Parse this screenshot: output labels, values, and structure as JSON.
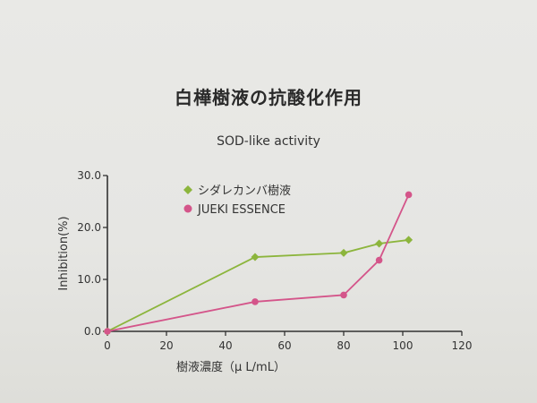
{
  "header": {
    "title": "白樺樹液の抗酸化作用",
    "subtitle": "SOD-like activity"
  },
  "chart_data": {
    "type": "line",
    "title": "SOD-like activity",
    "xlabel": "樹液濃度（μ L/mL）",
    "ylabel": "Inhibition(%)",
    "xlim": [
      0,
      120
    ],
    "ylim": [
      0,
      30
    ],
    "x_ticks": [
      "0",
      "20",
      "40",
      "60",
      "80",
      "100",
      "120"
    ],
    "y_ticks": [
      "0.0",
      "10.0",
      "20.0",
      "30.0"
    ],
    "grid": false,
    "legend_position": "top-left",
    "series": [
      {
        "name": "シダレカンバ樹液",
        "color": "#8cb53c",
        "marker": "diamond",
        "x": [
          0,
          50,
          80,
          92,
          102
        ],
        "y": [
          0,
          14.3,
          15.1,
          16.9,
          17.6
        ]
      },
      {
        "name": "JUEKI ESSENCE",
        "color": "#d4558a",
        "marker": "circle",
        "x": [
          0,
          50,
          80,
          92,
          102
        ],
        "y": [
          0,
          5.7,
          7.0,
          13.7,
          26.3
        ]
      }
    ]
  }
}
